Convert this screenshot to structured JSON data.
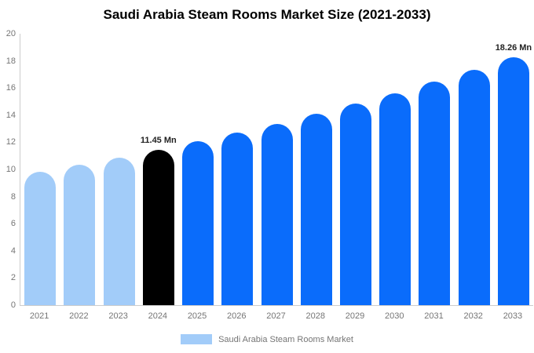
{
  "chart_data": {
    "type": "bar",
    "title": "Saudi Arabia Steam Rooms Market Size (2021-2033)",
    "categories": [
      "2021",
      "2022",
      "2023",
      "2024",
      "2025",
      "2026",
      "2027",
      "2028",
      "2029",
      "2030",
      "2031",
      "2032",
      "2033"
    ],
    "values": [
      9.8,
      10.32,
      10.87,
      11.45,
      12.06,
      12.7,
      13.37,
      14.08,
      14.83,
      15.62,
      16.45,
      17.32,
      18.26
    ],
    "bar_colors": [
      "#a2ccf9",
      "#a2ccf9",
      "#a2ccf9",
      "#000000",
      "#0a6cfb",
      "#0a6cfb",
      "#0a6cfb",
      "#0a6cfb",
      "#0a6cfb",
      "#0a6cfb",
      "#0a6cfb",
      "#0a6cfb",
      "#0a6cfb"
    ],
    "data_labels": [
      "",
      "",
      "",
      "11.45 Mn",
      "",
      "",
      "",
      "",
      "",
      "",
      "",
      "",
      "18.26 Mn"
    ],
    "xlabel": "",
    "ylabel": "",
    "ylim": [
      0,
      20
    ],
    "y_ticks": [
      0,
      2,
      4,
      6,
      8,
      10,
      12,
      14,
      16,
      18,
      20
    ],
    "grid": false,
    "legend_position": "bottom"
  },
  "legend": {
    "label": "Saudi Arabia Steam Rooms Market",
    "swatch_color": "#a2ccf9"
  },
  "palette": {
    "historical": "#a2ccf9",
    "base_year": "#000000",
    "forecast": "#0a6cfb",
    "axis_line": "#cccccc",
    "axis_text": "#757575",
    "title_text": "#000000"
  }
}
